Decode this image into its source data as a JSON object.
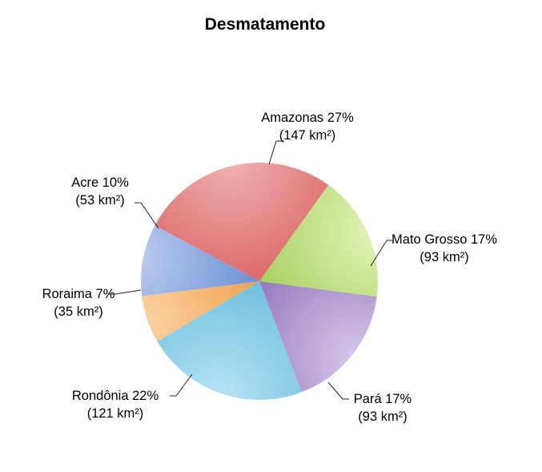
{
  "chart_data": {
    "type": "pie",
    "title": "Desmatamento",
    "slices": [
      {
        "name": "Amazonas",
        "percent_label": "27%",
        "value": 147,
        "value_label": "(147 km²)",
        "color": "#d75c5c",
        "light": "#f0b2b2"
      },
      {
        "name": "Mato Grosso",
        "percent_label": "17%",
        "value": 93,
        "value_label": "(93 km²)",
        "color": "#9bc94e",
        "light": "#e3f4b8"
      },
      {
        "name": "Pará",
        "percent_label": "17%",
        "value": 93,
        "value_label": "(93 km²)",
        "color": "#8a6bb4",
        "light": "#d7c8ea"
      },
      {
        "name": "Rondônia",
        "percent_label": "22%",
        "value": 121,
        "value_label": "(121 km²)",
        "color": "#62b9d8",
        "light": "#b8e4f6"
      },
      {
        "name": "Roraima",
        "percent_label": "7%",
        "value": 35,
        "value_label": "(35 km²)",
        "color": "#ef9a3e",
        "light": "#fbd3a6"
      },
      {
        "name": "Acre",
        "percent_label": "10%",
        "value": 53,
        "value_label": "(53 km²)",
        "color": "#5a84cc",
        "light": "#bccdf0"
      }
    ],
    "legend": "none"
  }
}
